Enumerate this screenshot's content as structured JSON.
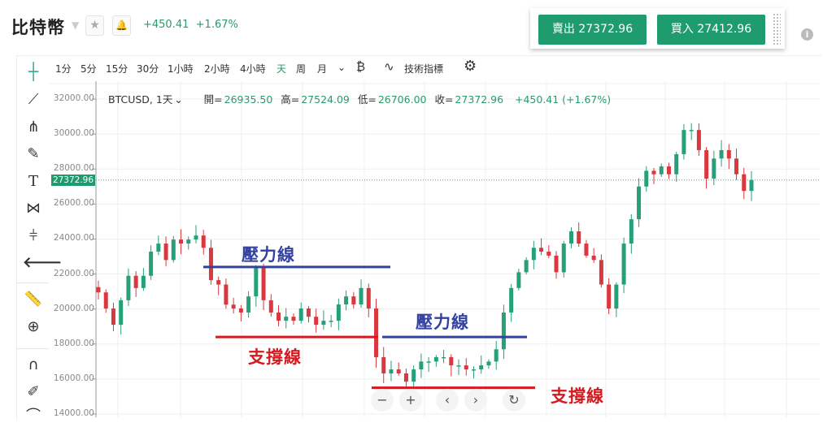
{
  "header": {
    "title": "比特幣",
    "change": "+450.41",
    "change_pct": "+1.67%",
    "star": "★",
    "bell": "🔔"
  },
  "trade": {
    "sell_label": "賣出 27372.96",
    "buy_label": "買入 27412.96",
    "info": "i"
  },
  "toolbar": {
    "timeframes": [
      "1分",
      "5分",
      "15分",
      "30分",
      "1小時",
      "2小時",
      "4小時",
      "天",
      "周",
      "月"
    ],
    "active": "天",
    "more": "⌄",
    "indicators_label": "技術指標"
  },
  "legend": {
    "symbol": "BTCUSD, 1天",
    "caret": "⌄",
    "open_label": "開=",
    "open": "26935.50",
    "high_label": "高=",
    "high": "27524.09",
    "low_label": "低=",
    "low": "26706.00",
    "close_label": "收=",
    "close": "27372.96",
    "change": "+450.41 (+1.67%)"
  },
  "left_tools": [
    "crosshair-icon",
    "trend-line-icon",
    "pitchfork-icon",
    "brush-icon",
    "text-icon",
    "pattern-icon",
    "prediction-icon",
    "back-arrow-icon",
    "ruler-icon",
    "zoom-in-icon",
    "magnet-icon",
    "lock-drawing-icon"
  ],
  "zoom_controls": {
    "minus": "−",
    "plus": "+",
    "left": "‹",
    "right": "›",
    "reset": "↻"
  },
  "colors": {
    "up": "#26a07a",
    "down": "#d9383e",
    "accent": "#1f9c6d",
    "resistance": "#3341a0",
    "support": "#d4191f"
  },
  "chart_data": {
    "type": "candlestick",
    "ylim": [
      14000,
      32000
    ],
    "y_ticks": [
      "32000.00",
      "30000.00",
      "28000.00",
      "26000.00",
      "24000.00",
      "22000.00",
      "20000.00",
      "18000.00",
      "16000.00",
      "14000.00"
    ],
    "last_price": "27372.96",
    "closes": [
      20950,
      20030,
      19100,
      20500,
      21900,
      21200,
      21900,
      23280,
      23740,
      22800,
      23970,
      23740,
      23970,
      24200,
      23500,
      21650,
      21400,
      20250,
      20030,
      19800,
      20720,
      22350,
      20500,
      19800,
      19330,
      19560,
      19330,
      20030,
      19560,
      19100,
      19330,
      19330,
      20260,
      20720,
      20260,
      21200,
      20030,
      17250,
      16320,
      16550,
      16320,
      15850,
      16550,
      17000,
      17000,
      17250,
      17250,
      16780,
      16780,
      16550,
      16550,
      16780,
      17000,
      17700,
      19800,
      21200,
      22100,
      22800,
      23500,
      23280,
      23050,
      22100,
      23740,
      24440,
      23740,
      23050,
      22800,
      21400,
      20030,
      21400,
      23740,
      25130,
      27000,
      27900,
      27700,
      28150,
      27700,
      28850,
      30230,
      30230,
      29080,
      27450,
      28600,
      29080,
      28600,
      27700,
      26750,
      27370
    ],
    "annotations": [
      {
        "label": "壓力線",
        "type": "resistance",
        "price": 22400
      },
      {
        "label": "支撐線",
        "type": "support",
        "price": 18400
      },
      {
        "label": "壓力線",
        "type": "resistance",
        "price": 18400
      },
      {
        "label": "支撐線",
        "type": "support",
        "price": 15500
      }
    ]
  }
}
